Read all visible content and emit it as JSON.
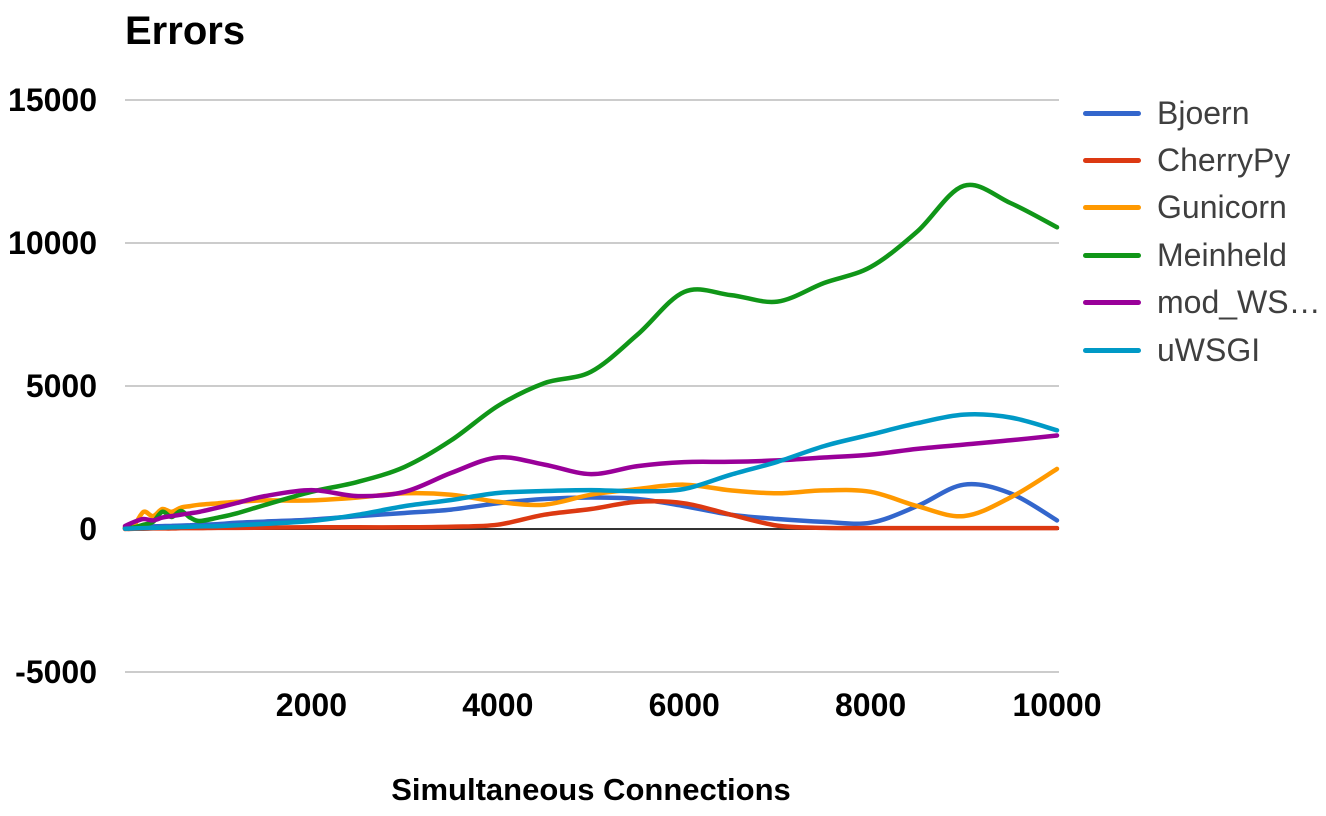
{
  "page": {
    "background": "#ffffff"
  },
  "style": {
    "grid_color": "#cccccc",
    "zero_axis_color": "#333333",
    "axis_text_color": "#000000",
    "legend_text_color": "#3f3f3f"
  },
  "chart_data": {
    "type": "line",
    "title": "Errors",
    "xlabel": "Simultaneous Connections",
    "ylabel": "",
    "xlim": [
      0,
      10000
    ],
    "ylim": [
      -5000,
      15000
    ],
    "x_ticks": [
      2000,
      4000,
      6000,
      8000,
      10000
    ],
    "y_ticks": [
      15000,
      10000,
      5000,
      0,
      -5000
    ],
    "grid": "horizontal-only",
    "curve": "smooth",
    "legend_position": "right",
    "legend": [
      "Bjoern",
      "CherryPy",
      "Gunicorn",
      "Meinheld",
      "mod_WS…",
      "uWSGI"
    ],
    "x": [
      0,
      100,
      200,
      300,
      400,
      500,
      600,
      700,
      800,
      1000,
      1200,
      1500,
      2000,
      2500,
      3000,
      3500,
      4000,
      4500,
      5000,
      5500,
      6000,
      6500,
      7000,
      7500,
      8000,
      8500,
      9000,
      9500,
      10000
    ],
    "series": [
      {
        "name": "Bjoern",
        "color": "#3366cc",
        "values": [
          30,
          50,
          70,
          90,
          100,
          110,
          120,
          130,
          150,
          170,
          220,
          260,
          330,
          450,
          560,
          680,
          900,
          1050,
          1100,
          1050,
          800,
          500,
          350,
          250,
          220,
          800,
          1550,
          1250,
          300
        ]
      },
      {
        "name": "CherryPy",
        "color": "#dc3912",
        "values": [
          0,
          10,
          10,
          20,
          20,
          20,
          30,
          30,
          30,
          40,
          40,
          50,
          60,
          60,
          60,
          80,
          150,
          500,
          700,
          950,
          900,
          500,
          120,
          40,
          30,
          30,
          30,
          30,
          30
        ]
      },
      {
        "name": "Gunicorn",
        "color": "#ff9900",
        "values": [
          50,
          150,
          600,
          450,
          700,
          600,
          750,
          800,
          850,
          900,
          950,
          1000,
          1000,
          1100,
          1250,
          1200,
          950,
          850,
          1200,
          1400,
          1550,
          1350,
          1250,
          1350,
          1300,
          800,
          450,
          1100,
          2100
        ]
      },
      {
        "name": "Meinheld",
        "color": "#109618",
        "values": [
          30,
          60,
          150,
          250,
          600,
          420,
          630,
          400,
          280,
          400,
          550,
          840,
          1300,
          1650,
          2170,
          3100,
          4300,
          5100,
          5500,
          6800,
          8290,
          8180,
          7950,
          8600,
          9160,
          10400,
          12000,
          11400,
          10550
        ]
      },
      {
        "name": "mod_WS…",
        "color": "#990099",
        "values": [
          100,
          250,
          350,
          300,
          400,
          450,
          500,
          550,
          600,
          750,
          910,
          1150,
          1360,
          1150,
          1300,
          1960,
          2500,
          2250,
          1920,
          2200,
          2340,
          2350,
          2400,
          2500,
          2600,
          2800,
          2950,
          3100,
          3270
        ]
      },
      {
        "name": "uWSGI",
        "color": "#0099c6",
        "values": [
          10,
          20,
          30,
          40,
          50,
          60,
          70,
          80,
          90,
          100,
          130,
          180,
          280,
          500,
          800,
          1015,
          1260,
          1330,
          1360,
          1320,
          1400,
          1900,
          2350,
          2900,
          3300,
          3700,
          4000,
          3900,
          3450
        ]
      }
    ]
  }
}
